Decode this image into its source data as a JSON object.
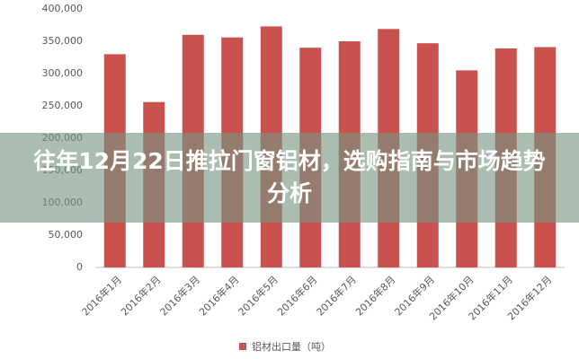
{
  "chart_data": {
    "type": "bar",
    "title": "往年12月22日推拉门窗铝材，选购指南与市场趋势分析",
    "categories": [
      "2016年1月",
      "2016年2月",
      "2016年3月",
      "2016年4月",
      "2016年5月",
      "2016年6月",
      "2016年7月",
      "2016年8月",
      "2016年9月",
      "2016年10月",
      "2016年11月",
      "2016年12月"
    ],
    "series": [
      {
        "name": "铝材出口量（吨）",
        "color": "#c9524f",
        "values": [
          330000,
          256000,
          360000,
          356000,
          373000,
          340000,
          350000,
          369000,
          347000,
          305000,
          339000,
          341000
        ]
      }
    ],
    "ylim": [
      0,
      400000
    ],
    "yticks": [
      0,
      {
        "value": 50000,
        "label": "50,000"
      },
      {
        "value": 100000,
        "label": "100,000"
      },
      {
        "value": 150000,
        "label": "150,000"
      },
      {
        "value": 200000,
        "label": "200,000"
      },
      {
        "value": 250000,
        "label": "250,000"
      },
      {
        "value": 300000,
        "label": "300,000"
      },
      {
        "value": 350000,
        "label": "350,000"
      },
      {
        "value": 400000,
        "label": "400,000"
      }
    ],
    "legend": "bottom"
  }
}
